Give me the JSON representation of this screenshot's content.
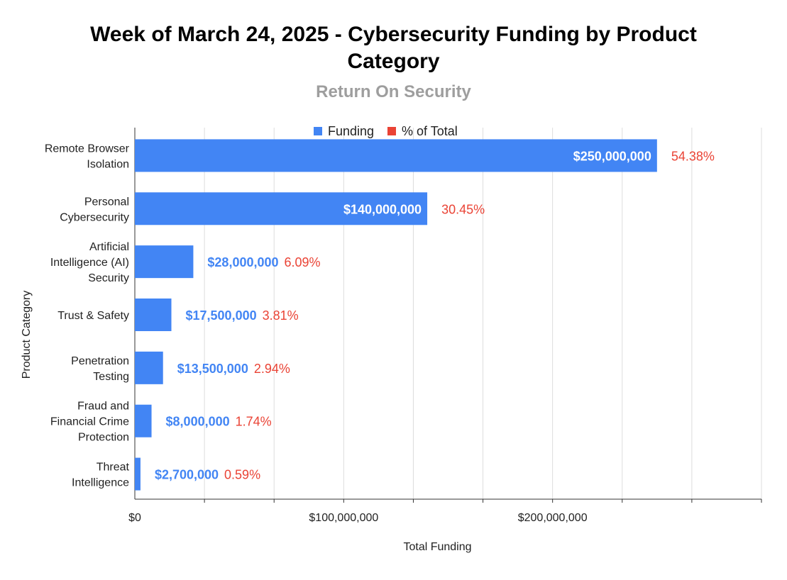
{
  "chart_data": {
    "type": "bar",
    "orientation": "horizontal",
    "title_lines": [
      "Week of March 24, 2025 - Cybersecurity Funding by Product",
      "Category"
    ],
    "subtitle": "Return On Security",
    "xlabel": "Total Funding",
    "ylabel": "Product Category",
    "xlim": [
      0,
      300000000
    ],
    "x_ticks": [
      {
        "value": 0,
        "label": "$0"
      },
      {
        "value": 100000000,
        "label": "$100,000,000"
      },
      {
        "value": 200000000,
        "label": "$200,000,000"
      }
    ],
    "legend": [
      {
        "name": "Funding",
        "color": "#4285f4"
      },
      {
        "name": "% of Total",
        "color": "#ea4335"
      }
    ],
    "legend_position": "top",
    "categories": [
      {
        "lines": [
          "Remote Browser",
          "Isolation"
        ],
        "value": 250000000,
        "value_label": "$250,000,000",
        "pct_label": "54.38%"
      },
      {
        "lines": [
          "Personal",
          "Cybersecurity"
        ],
        "value": 140000000,
        "value_label": "$140,000,000",
        "pct_label": "30.45%"
      },
      {
        "lines": [
          "Artificial",
          "Intelligence (AI)",
          "Security"
        ],
        "value": 28000000,
        "value_label": "$28,000,000",
        "pct_label": "6.09%"
      },
      {
        "lines": [
          "Trust & Safety"
        ],
        "value": 17500000,
        "value_label": "$17,500,000",
        "pct_label": "3.81%"
      },
      {
        "lines": [
          "Penetration",
          "Testing"
        ],
        "value": 13500000,
        "value_label": "$13,500,000",
        "pct_label": "2.94%"
      },
      {
        "lines": [
          "Fraud and",
          "Financial Crime",
          "Protection"
        ],
        "value": 8000000,
        "value_label": "$8,000,000",
        "pct_label": "1.74%"
      },
      {
        "lines": [
          "Threat",
          "Intelligence"
        ],
        "value": 2700000,
        "value_label": "$2,700,000",
        "pct_label": "0.59%"
      }
    ],
    "colors": {
      "bar": "#4285f4",
      "pct": "#ea4335",
      "grid": "#dddddd",
      "axis": "#333333"
    }
  }
}
